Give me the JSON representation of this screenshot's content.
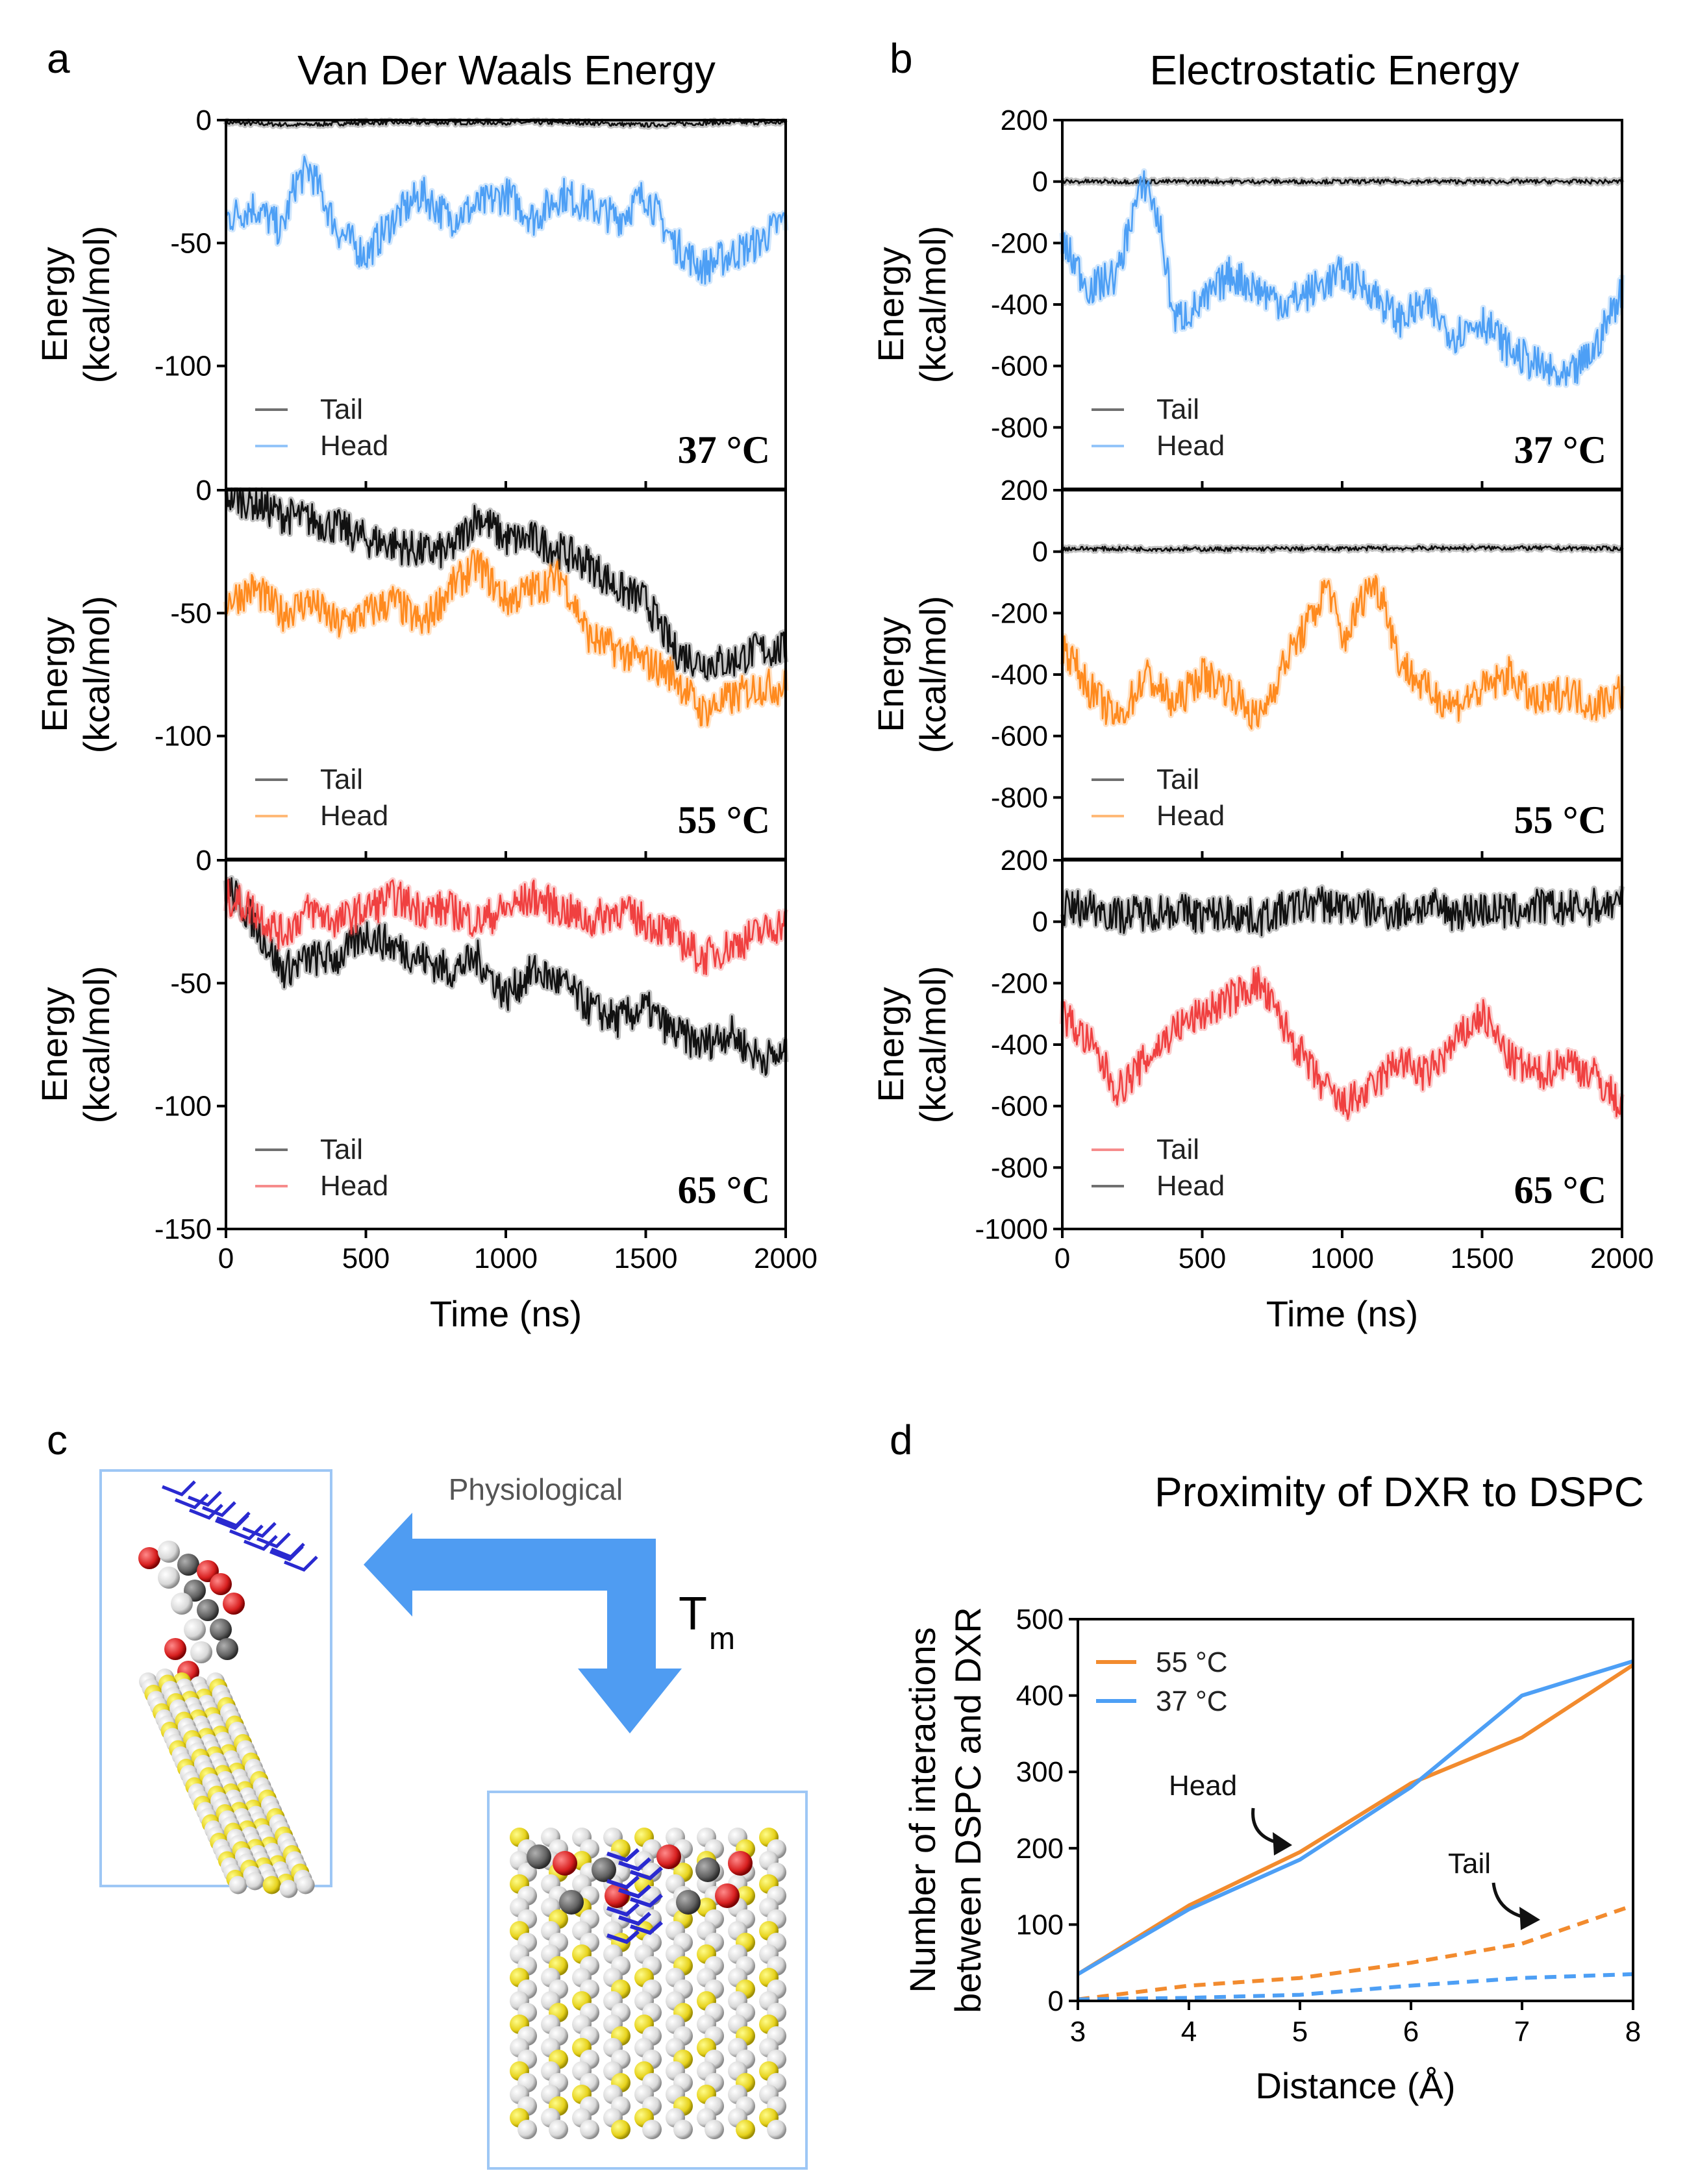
{
  "panels": {
    "a": "a",
    "b": "b",
    "c": "c",
    "d": "d"
  },
  "colors": {
    "tail": "#111111",
    "head37": "#4d9ff5",
    "head55": "#ff8a1e",
    "head65": "#f04040",
    "arrow": "#4f9cf2",
    "box": "#9ec7f5",
    "c55": "#f28b2e",
    "c37": "#4d9ff5"
  },
  "chart_data": [
    {
      "id": "vdw",
      "type": "line",
      "title": "Van Der Waals Energy",
      "xlabel": "Time (ns)",
      "ylabel": [
        "Energy",
        "(kcal/mol)"
      ],
      "xlim": [
        0,
        2000
      ],
      "xticks": [
        "0",
        "500",
        "1000",
        "1500",
        "2000"
      ],
      "subplots": [
        {
          "temp": "37 °C",
          "ylim": [
            -150,
            0
          ],
          "yticks": [
            "0",
            "-50",
            "-100"
          ],
          "legend": [
            "Tail",
            "Head"
          ],
          "series": [
            {
              "name": "Tail",
              "color_key": "tail",
              "x": [
                0,
                250,
                500,
                750,
                1000,
                1250,
                1500,
                1750,
                2000
              ],
              "y": [
                -1,
                -2,
                -1,
                -1,
                -1,
                -1,
                -2,
                -1,
                -1
              ]
            },
            {
              "name": "Head",
              "color_key": "head37",
              "x": [
                0,
                100,
                200,
                250,
                300,
                400,
                500,
                600,
                700,
                800,
                900,
                1000,
                1100,
                1200,
                1300,
                1400,
                1500,
                1600,
                1700,
                1800,
                1900,
                2000
              ],
              "y": [
                -40,
                -35,
                -45,
                -25,
                -20,
                -45,
                -55,
                -40,
                -30,
                -40,
                -35,
                -30,
                -40,
                -30,
                -35,
                -40,
                -30,
                -50,
                -60,
                -55,
                -50,
                -40
              ]
            }
          ]
        },
        {
          "temp": "55 °C",
          "ylim": [
            -150,
            0
          ],
          "yticks": [
            "0",
            "-50",
            "-100"
          ],
          "legend": [
            "Tail",
            "Head"
          ],
          "series": [
            {
              "name": "Tail",
              "color_key": "tail",
              "x": [
                0,
                100,
                200,
                300,
                400,
                500,
                600,
                700,
                800,
                900,
                1000,
                1100,
                1200,
                1300,
                1400,
                1500,
                1600,
                1700,
                1800,
                1900,
                2000
              ],
              "y": [
                -2,
                -5,
                -10,
                -12,
                -15,
                -20,
                -22,
                -25,
                -25,
                -10,
                -20,
                -20,
                -25,
                -30,
                -40,
                -45,
                -65,
                -70,
                -70,
                -65,
                -65
              ]
            },
            {
              "name": "Head",
              "color_key": "head55",
              "x": [
                0,
                100,
                200,
                300,
                400,
                500,
                600,
                700,
                800,
                900,
                1000,
                1100,
                1200,
                1300,
                1400,
                1500,
                1600,
                1700,
                1800,
                1900,
                2000
              ],
              "y": [
                -45,
                -40,
                -50,
                -45,
                -55,
                -50,
                -45,
                -55,
                -40,
                -30,
                -45,
                -40,
                -35,
                -60,
                -65,
                -70,
                -75,
                -90,
                -85,
                -80,
                -80
              ]
            }
          ]
        },
        {
          "temp": "65 °C",
          "ylim": [
            -150,
            0
          ],
          "yticks": [
            "0",
            "-50",
            "-100",
            "-150"
          ],
          "legend": [
            "Tail",
            "Head"
          ],
          "series": [
            {
              "name": "Tail",
              "color_key": "tail",
              "x": [
                0,
                100,
                200,
                300,
                400,
                500,
                600,
                700,
                800,
                900,
                1000,
                1100,
                1200,
                1300,
                1400,
                1500,
                1600,
                1700,
                1800,
                1900,
                2000
              ],
              "y": [
                -10,
                -25,
                -45,
                -40,
                -40,
                -30,
                -35,
                -40,
                -45,
                -40,
                -55,
                -45,
                -50,
                -60,
                -65,
                -60,
                -70,
                -75,
                -70,
                -80,
                -80
              ]
            },
            {
              "name": "Head",
              "color_key": "head65",
              "x": [
                0,
                100,
                200,
                300,
                400,
                500,
                600,
                700,
                800,
                900,
                1000,
                1100,
                1200,
                1300,
                1400,
                1500,
                1600,
                1700,
                1800,
                1900,
                2000
              ],
              "y": [
                -15,
                -20,
                -30,
                -20,
                -25,
                -20,
                -15,
                -20,
                -20,
                -25,
                -20,
                -15,
                -20,
                -25,
                -20,
                -25,
                -30,
                -40,
                -35,
                -30,
                -25
              ]
            }
          ]
        }
      ]
    },
    {
      "id": "elec",
      "type": "line",
      "title": "Electrostatic Energy",
      "xlabel": "Time (ns)",
      "ylabel": [
        "Energy",
        "(kcal/mol)"
      ],
      "xlim": [
        0,
        2000
      ],
      "xticks": [
        "0",
        "500",
        "1000",
        "1500",
        "2000"
      ],
      "subplots": [
        {
          "temp": "37 °C",
          "ylim": [
            -1000,
            200
          ],
          "yticks": [
            "200",
            "0",
            "-200",
            "-400",
            "-600",
            "-800"
          ],
          "legend": [
            "Tail",
            "Head"
          ],
          "series": [
            {
              "name": "Tail",
              "color_key": "tail",
              "x": [
                0,
                500,
                1000,
                1500,
                2000
              ],
              "y": [
                0,
                0,
                0,
                0,
                0
              ]
            },
            {
              "name": "Head",
              "color_key": "head37",
              "x": [
                0,
                100,
                200,
                250,
                300,
                350,
                400,
                500,
                600,
                700,
                800,
                900,
                1000,
                1100,
                1200,
                1300,
                1400,
                1500,
                1600,
                1700,
                1800,
                1900,
                2000
              ],
              "y": [
                -200,
                -350,
                -300,
                -100,
                0,
                -150,
                -450,
                -400,
                -300,
                -350,
                -400,
                -350,
                -300,
                -350,
                -450,
                -400,
                -500,
                -450,
                -550,
                -600,
                -650,
                -550,
                -350
              ]
            }
          ]
        },
        {
          "temp": "55 °C",
          "ylim": [
            -1000,
            200
          ],
          "yticks": [
            "200",
            "0",
            "-200",
            "-400",
            "-600",
            "-800"
          ],
          "legend": [
            "Tail",
            "Head"
          ],
          "series": [
            {
              "name": "Tail",
              "color_key": "tail",
              "x": [
                0,
                500,
                1000,
                1500,
                2000
              ],
              "y": [
                10,
                8,
                10,
                12,
                10
              ]
            },
            {
              "name": "Head",
              "color_key": "head55",
              "x": [
                0,
                100,
                200,
                300,
                400,
                500,
                600,
                700,
                800,
                900,
                950,
                1000,
                1100,
                1150,
                1200,
                1300,
                1400,
                1500,
                1600,
                1700,
                1800,
                1900,
                2000
              ],
              "y": [
                -300,
                -450,
                -550,
                -400,
                -500,
                -400,
                -450,
                -550,
                -350,
                -200,
                -100,
                -300,
                -100,
                -150,
                -350,
                -450,
                -500,
                -450,
                -400,
                -500,
                -450,
                -500,
                -450
              ]
            }
          ]
        },
        {
          "temp": "65 °C",
          "ylim": [
            -1000,
            200
          ],
          "yticks": [
            "200",
            "0",
            "-200",
            "-400",
            "-600",
            "-800",
            "-1000"
          ],
          "legend": [
            "Tail",
            "Head"
          ],
          "series": [
            {
              "name": "Tail",
              "color_key": "head65",
              "x": [
                0,
                100,
                200,
                300,
                400,
                500,
                600,
                700,
                800,
                900,
                1000,
                1100,
                1200,
                1300,
                1400,
                1500,
                1600,
                1700,
                1800,
                1900,
                2000
              ],
              "y": [
                -300,
                -400,
                -550,
                -450,
                -350,
                -300,
                -250,
                -200,
                -350,
                -500,
                -600,
                -550,
                -450,
                -500,
                -400,
                -300,
                -450,
                -500,
                -450,
                -500,
                -600
              ]
            },
            {
              "name": "Head",
              "color_key": "tail",
              "x": [
                0,
                100,
                200,
                300,
                400,
                500,
                600,
                700,
                800,
                900,
                1000,
                1100,
                1200,
                1300,
                1400,
                1500,
                1600,
                1700,
                1800,
                1900,
                2000
              ],
              "y": [
                40,
                50,
                20,
                30,
                40,
                20,
                30,
                10,
                40,
                60,
                50,
                40,
                30,
                50,
                30,
                40,
                30,
                50,
                40,
                50,
                60
              ]
            }
          ]
        }
      ]
    },
    {
      "id": "proximity",
      "type": "line",
      "title": "Proximity of DXR to DSPC",
      "xlabel": "Distance (Å)",
      "ylabel": [
        "Number of interactions",
        "between DSPC and DXR"
      ],
      "xlim": [
        3,
        8
      ],
      "ylim": [
        0,
        500
      ],
      "xticks": [
        "3",
        "4",
        "5",
        "6",
        "7",
        "8"
      ],
      "yticks": [
        "0",
        "100",
        "200",
        "300",
        "400",
        "500"
      ],
      "legend": [
        "55 °C",
        "37 °C"
      ],
      "annotations": [
        "Head",
        "Tail"
      ],
      "series": [
        {
          "name": "55 °C Head",
          "color_key": "c55",
          "dashed": false,
          "x": [
            3,
            4,
            5,
            6,
            7,
            8
          ],
          "y": [
            35,
            125,
            195,
            285,
            345,
            440
          ]
        },
        {
          "name": "37 °C Head",
          "color_key": "c37",
          "dashed": false,
          "x": [
            3,
            4,
            5,
            6,
            7,
            8
          ],
          "y": [
            35,
            120,
            185,
            280,
            400,
            445
          ]
        },
        {
          "name": "55 °C Tail",
          "color_key": "c55",
          "dashed": true,
          "x": [
            3,
            4,
            5,
            6,
            7,
            8
          ],
          "y": [
            2,
            20,
            30,
            50,
            75,
            125
          ]
        },
        {
          "name": "37 °C Tail",
          "color_key": "c37",
          "dashed": true,
          "x": [
            3,
            4,
            5,
            6,
            7,
            8
          ],
          "y": [
            2,
            4,
            8,
            20,
            30,
            35
          ]
        }
      ]
    }
  ],
  "diagram": {
    "physiological_label": "Physiological",
    "tm_label": "T",
    "tm_sub": "m",
    "left_box": "DSPC lipid with DXR at physiological temperature",
    "right_box": "DSPC lipids with DXR at Tm"
  }
}
